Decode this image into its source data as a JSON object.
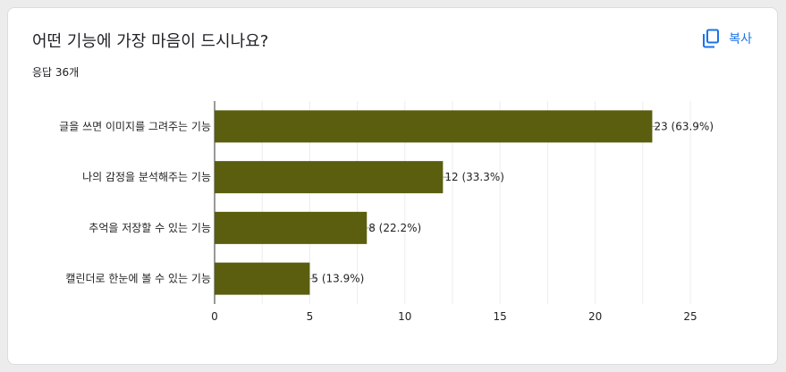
{
  "question": {
    "title": "어떤 기능에 가장 마음이 드시나요?",
    "responses": "응답 36개"
  },
  "toolbar": {
    "copy_label": "복사",
    "copy_icon": "copy-icon",
    "accent": "#1a73e8"
  },
  "chart_data": {
    "type": "bar",
    "orientation": "horizontal",
    "categories": [
      "글을 쓰면 이미지를 그려주는 기능",
      "나의 감정을 분석해주는 기능",
      "추억을 저장할 수 있는 기능",
      "캘린더로 한눈에 볼 수 있는 기능"
    ],
    "values": [
      23,
      12,
      8,
      5
    ],
    "value_labels": [
      "23 (63.9%)",
      "12 (33.3%)",
      "8 (22.2%)",
      "5 (13.9%)"
    ],
    "xlim": [
      0,
      25
    ],
    "xticks": [
      0,
      5,
      10,
      15,
      20,
      25
    ],
    "bar_color": "#5a5e0e",
    "grid": true
  }
}
